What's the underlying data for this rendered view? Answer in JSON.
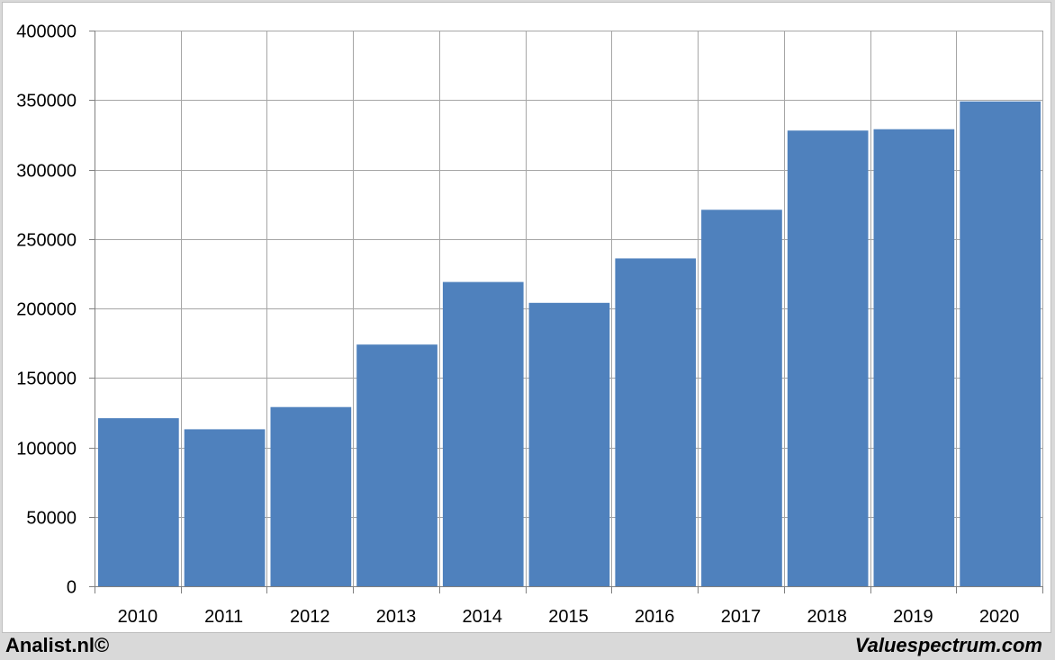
{
  "chart_data": {
    "type": "bar",
    "categories": [
      "2010",
      "2011",
      "2012",
      "2013",
      "2014",
      "2015",
      "2016",
      "2017",
      "2018",
      "2019",
      "2020"
    ],
    "values": [
      121000,
      113000,
      129000,
      174000,
      219000,
      204000,
      236000,
      271000,
      328000,
      329000,
      349000
    ],
    "ylim": [
      0,
      400000
    ],
    "yticks": [
      0,
      50000,
      100000,
      150000,
      200000,
      250000,
      300000,
      350000,
      400000
    ],
    "ytick_labels": [
      "0",
      "50000",
      "100000",
      "150000",
      "200000",
      "250000",
      "300000",
      "350000",
      "400000"
    ],
    "title": "",
    "xlabel": "",
    "ylabel": "",
    "grid": true,
    "legend": false,
    "bar_color": "#4f81bd",
    "grid_color": "#a6a6a6"
  },
  "footer": {
    "left": "Analist.nl©",
    "right": "Valuespectrum.com"
  }
}
